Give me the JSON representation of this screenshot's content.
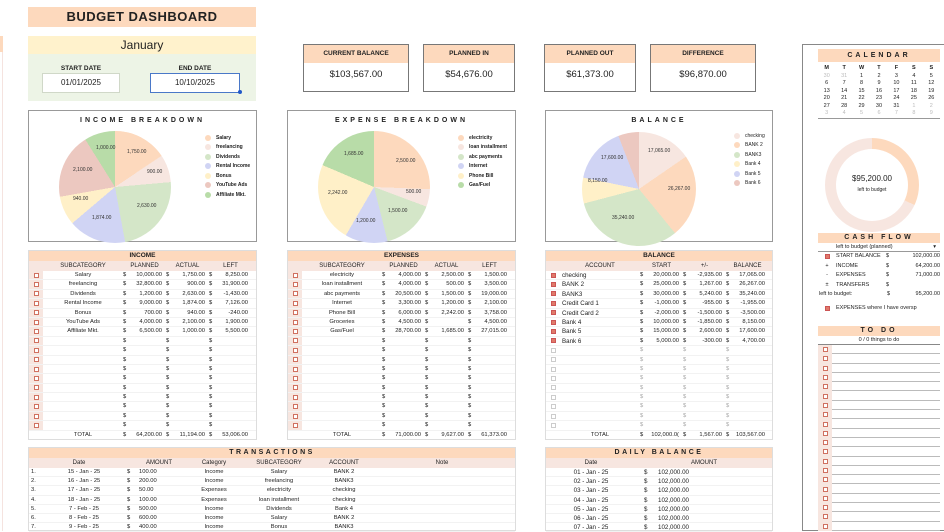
{
  "header": {
    "title": "BUDGET DASHBOARD",
    "month": "January"
  },
  "dates": {
    "start_label": "START DATE",
    "start_value": "01/01/2025",
    "end_label": "END DATE",
    "end_value": "10/10/2025"
  },
  "kpis": [
    {
      "label": "CURRENT BALANCE",
      "value": "$103,567.00"
    },
    {
      "label": "PLANNED IN",
      "value": "$54,676.00"
    },
    {
      "label": "PLANNED OUT",
      "value": "$61,373.00"
    },
    {
      "label": "DIFFERENCE",
      "value": "$96,870.00"
    }
  ],
  "chart_data": [
    {
      "type": "pie",
      "title": "INCOME BREAKDOWN",
      "categories": [
        "Salary",
        "freelancing",
        "Dividends",
        "Rental Income",
        "Bonus",
        "YouTube Ads",
        "Affiliate Mkt."
      ],
      "values": [
        1750,
        900,
        2630,
        1874,
        940,
        2100,
        1000
      ],
      "labels": [
        "1,750.00",
        "900.00",
        "2,630.00",
        "1,874.00",
        "940.00",
        "2,100.00",
        "1,000.00"
      ],
      "colors": [
        "#fdd9bd",
        "#f7e6e0",
        "#d4e6c8",
        "#d0d4f4",
        "#fff0c8",
        "#ecc8c0",
        "#b8dca8"
      ],
      "legend_position": "right"
    },
    {
      "type": "pie",
      "title": "EXPENSE BREAKDOWN",
      "categories": [
        "electricity",
        "loan installment",
        "abc payments",
        "Internet",
        "Phone Bill",
        "Gas/Fuel"
      ],
      "values": [
        2500,
        500,
        1500,
        1200,
        2242,
        1685
      ],
      "labels": [
        "2,500.00",
        "500.00",
        "1,500.00",
        "1,200.00",
        "2,242.00",
        "1,685.00"
      ],
      "colors": [
        "#fdd9bd",
        "#f7e6e0",
        "#d4e6c8",
        "#d0d4f4",
        "#fff0c8",
        "#b8dca8"
      ],
      "legend_position": "right"
    },
    {
      "type": "pie",
      "title": "BALANCE",
      "categories": [
        "checking",
        "BANK 2",
        "BANK3",
        "Bank 4",
        "Bank 5",
        "Bank 6"
      ],
      "values": [
        17065,
        26267,
        35240,
        8150,
        17600,
        4700
      ],
      "labels": [
        "17,065.00",
        "26,267.00",
        "35,240.00",
        "8,150.00",
        "17,600.00",
        ""
      ],
      "colors": [
        "#f7e6e0",
        "#fdd9bd",
        "#d4e6c8",
        "#fff0c8",
        "#d0d4f4",
        "#ecc8c0"
      ],
      "legend_position": "right"
    }
  ],
  "income": {
    "title": "INCOME",
    "headers": [
      "SUBCATEGORY",
      "PLANNED",
      "ACTUAL",
      "LEFT"
    ],
    "rows": [
      [
        "Salary",
        "10,000.00",
        "1,750.00",
        "8,250.00"
      ],
      [
        "freelancing",
        "32,800.00",
        "900.00",
        "31,900.00"
      ],
      [
        "Dividends",
        "1,200.00",
        "2,630.00",
        "-1,430.00"
      ],
      [
        "Rental Income",
        "9,000.00",
        "1,874.00",
        "7,126.00"
      ],
      [
        "Bonus",
        "700.00",
        "940.00",
        "-240.00"
      ],
      [
        "YouTube Ads",
        "4,000.00",
        "2,100.00",
        "1,900.00"
      ],
      [
        "Affiliate Mkt.",
        "6,500.00",
        "1,000.00",
        "5,500.00"
      ]
    ],
    "total": [
      "TOTAL",
      "64,200.00",
      "11,194.00",
      "53,006.00"
    ]
  },
  "expenses": {
    "title": "EXPENSES",
    "headers": [
      "SUBCATEGORY",
      "PLANNED",
      "ACTUAL",
      "LEFT"
    ],
    "rows": [
      [
        "electricity",
        "4,000.00",
        "2,500.00",
        "1,500.00"
      ],
      [
        "loan installment",
        "4,000.00",
        "500.00",
        "3,500.00"
      ],
      [
        "abc payments",
        "20,500.00",
        "1,500.00",
        "19,000.00"
      ],
      [
        "Internet",
        "3,300.00",
        "1,200.00",
        "2,100.00"
      ],
      [
        "Phone Bill",
        "6,000.00",
        "2,242.00",
        "3,758.00"
      ],
      [
        "Groceries",
        "4,500.00",
        "",
        "4,500.00"
      ],
      [
        "Gas/Fuel",
        "28,700.00",
        "1,685.00",
        "27,015.00"
      ]
    ],
    "total": [
      "TOTAL",
      "71,000.00",
      "9,627.00",
      "61,373.00"
    ]
  },
  "balance": {
    "title": "BALANCE",
    "headers": [
      "ACCOUNT",
      "START",
      "+/-",
      "BALANCE"
    ],
    "rows": [
      [
        "checking",
        "20,000.00",
        "-2,935.00",
        "17,065.00"
      ],
      [
        "BANK 2",
        "25,000.00",
        "1,267.00",
        "26,267.00"
      ],
      [
        "BANK3",
        "30,000.00",
        "5,240.00",
        "35,240.00"
      ],
      [
        "Credit Card 1",
        "-1,000.00",
        "-955.00",
        "-1,955.00"
      ],
      [
        "Credit Card 2",
        "-2,000.00",
        "-1,500.00",
        "-3,500.00"
      ],
      [
        "Bank 4",
        "10,000.00",
        "-1,850.00",
        "8,150.00"
      ],
      [
        "Bank 5",
        "15,000.00",
        "2,600.00",
        "17,600.00"
      ],
      [
        "Bank 6",
        "5,000.00",
        "-300.00",
        "4,700.00"
      ]
    ],
    "total": [
      "TOTAL",
      "102,000.0(",
      "1,567.00",
      "103,567.00"
    ]
  },
  "transactions": {
    "title": "TRANSACTIONS",
    "headers": [
      "Date",
      "AMOUNT",
      "Category",
      "SUBCATEGORY",
      "ACCOUNT",
      "Note"
    ],
    "rows": [
      [
        "1.",
        "15 - Jan - 25",
        "100.00",
        "Income",
        "Salary",
        "BANK 2"
      ],
      [
        "2.",
        "16 - Jan - 25",
        "200.00",
        "Income",
        "freelancing",
        "BANK3"
      ],
      [
        "3.",
        "17 - Jan - 25",
        "50.00",
        "Expenses",
        "electricity",
        "checking"
      ],
      [
        "4.",
        "18 - Jan - 25",
        "100.00",
        "Expenses",
        "loan installment",
        "checking"
      ],
      [
        "5.",
        "7 - Feb - 25",
        "500.00",
        "Income",
        "Dividends",
        "Bank 4"
      ],
      [
        "6.",
        "8 - Feb - 25",
        "600.00",
        "Income",
        "Salary",
        "BANK 2"
      ],
      [
        "7.",
        "9 - Feb - 25",
        "400.00",
        "Income",
        "Bonus",
        "BANK3"
      ]
    ]
  },
  "daily_balance": {
    "title": "DAILY BALANCE",
    "headers": [
      "Date",
      "AMOUNT"
    ],
    "rows": [
      [
        "01 - Jan - 25",
        "102,000.00"
      ],
      [
        "02 - Jan - 25",
        "102,000.00"
      ],
      [
        "03 - Jan - 25",
        "102,000.00"
      ],
      [
        "04 - Jan - 25",
        "102,000.00"
      ],
      [
        "05 - Jan - 25",
        "102,000.00"
      ],
      [
        "06 - Jan - 25",
        "102,000.00"
      ],
      [
        "07 - Jan - 25",
        "102,000.00"
      ]
    ]
  },
  "calendar": {
    "title": "CALENDAR",
    "days": [
      "M",
      "T",
      "W",
      "T",
      "F",
      "S",
      "S"
    ],
    "weeks": [
      [
        "30",
        "31",
        "1",
        "2",
        "3",
        "4",
        "5"
      ],
      [
        "6",
        "7",
        "8",
        "9",
        "10",
        "11",
        "12"
      ],
      [
        "13",
        "14",
        "15",
        "16",
        "17",
        "18",
        "19"
      ],
      [
        "20",
        "21",
        "22",
        "23",
        "24",
        "25",
        "26"
      ],
      [
        "27",
        "28",
        "29",
        "30",
        "31",
        "1",
        "2"
      ],
      [
        "3",
        "4",
        "5",
        "6",
        "7",
        "8",
        "9"
      ]
    ]
  },
  "donut": {
    "value": "$95,200.00",
    "label": "left to budget"
  },
  "cash_flow": {
    "title": "CASH FLOW",
    "dropdown": "left to budget (planned)",
    "rows": [
      {
        "sign": "☑",
        "label": "START BALANCE",
        "value": "102,000.00"
      },
      {
        "sign": "+",
        "label": "INCOME",
        "value": "64,200.00"
      },
      {
        "sign": "-",
        "label": "EXPENSES",
        "value": "71,000.00"
      },
      {
        "sign": "±",
        "label": "TRANSFERS",
        "value": ""
      }
    ],
    "left_label": "left to budget:",
    "left_value": "95,200.00",
    "overspend_label": "EXPENSES where I have oversp"
  },
  "todo": {
    "title": "TO DO",
    "count": "0 / 0  things to do"
  },
  "currency": "$"
}
